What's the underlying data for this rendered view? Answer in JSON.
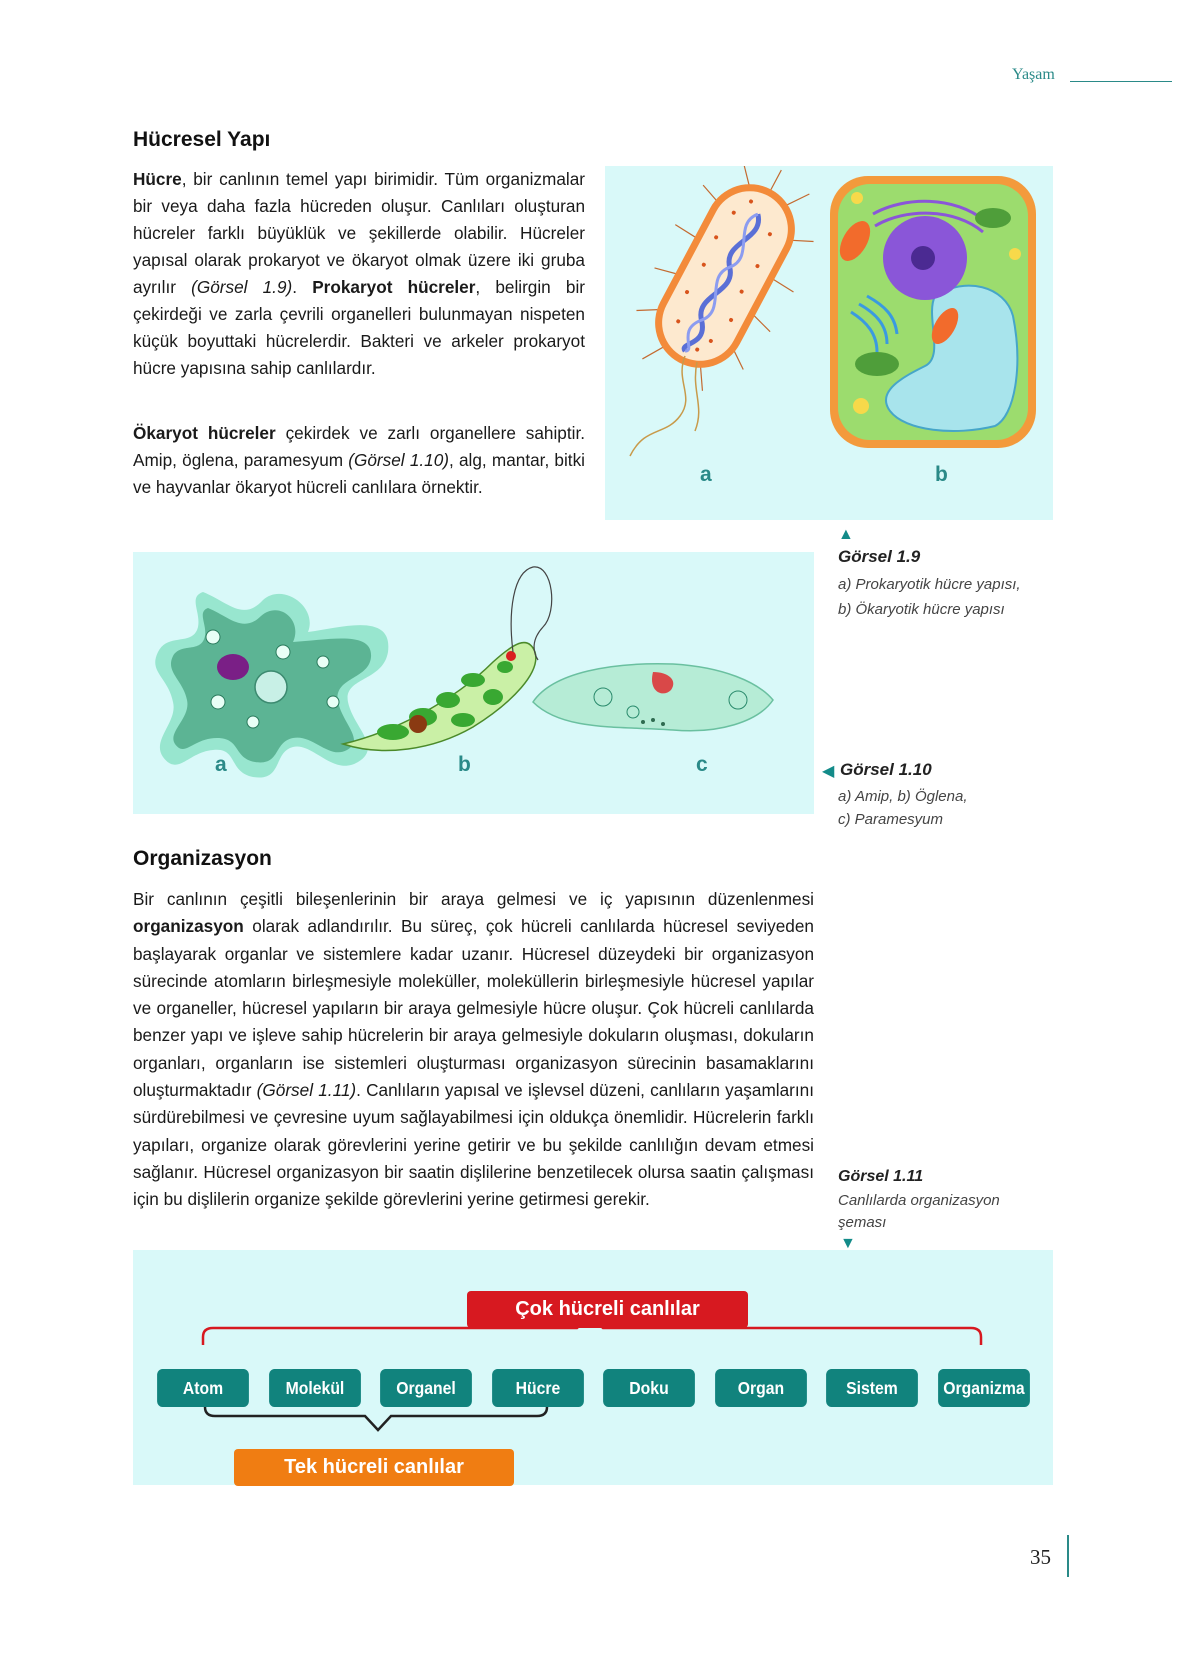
{
  "header": {
    "section": "Yaşam"
  },
  "section1": {
    "title": "Hücresel Yapı",
    "p1": [
      {
        "t": "Hücre",
        "b": true
      },
      {
        "t": ", bir canlının temel yapı birimidir. Tüm organizmalar bir veya daha fazla hücreden oluşur. Canlıları oluşturan hücreler farklı büyüklük ve şekillerde olabilir. Hücreler yapısal olarak prokaryot ve ökaryot olmak üzere iki gruba ayrılır "
      },
      {
        "t": "(Görsel 1.9)",
        "i": true
      },
      {
        "t": ". "
      },
      {
        "t": "Prokaryot hücreler",
        "b": true
      },
      {
        "t": ", belirgin bir çekirdeği ve zarla çevrili organelleri bulunmayan nispeten küçük boyuttaki hücrelerdir. Bakteri ve arkeler prokaryot hücre yapısına sahip canlılardır."
      }
    ],
    "p2": [
      {
        "t": "Ökaryot hücreler",
        "b": true
      },
      {
        "t": " çekirdek ve zarlı organellere sahiptir. Amip, öglena, paramesyum "
      },
      {
        "t": "(Görsel 1.10)",
        "i": true
      },
      {
        "t": ", alg, mantar, bitki ve hayvanlar ökaryot hücreli canlılara örnektir."
      }
    ]
  },
  "figure_1_9": {
    "labels": [
      "a",
      "b"
    ],
    "caption_title": "Görsel 1.9",
    "caption_lines": [
      "a) Prokaryotik hücre yapısı,",
      "b) Ökaryotik hücre yapısı"
    ]
  },
  "figure_1_10": {
    "labels": [
      "a",
      "b",
      "c"
    ],
    "caption_title": "Görsel 1.10",
    "caption_lines": [
      "a) Amip, b) Öglena,",
      "c) Paramesyum"
    ]
  },
  "section2": {
    "title": "Organizasyon",
    "p1": [
      {
        "t": "Bir canlının çeşitli bileşenlerinin bir araya gelmesi ve iç yapısının düzenlenmesi "
      },
      {
        "t": "organizasyon",
        "b": true
      },
      {
        "t": " olarak adlandırılır. Bu süreç, çok hücreli canlılarda hücresel seviyeden başlayarak organlar ve sistemlere kadar uzanır. Hücresel düzeydeki bir organizasyon sürecinde atomların birleşmesiyle moleküller, moleküllerin birleşmesiyle hücresel yapılar ve organeller, hücresel yapıların bir araya gelmesiyle hücre oluşur. Çok hücreli canlılarda benzer yapı ve işleve sahip hücrelerin bir araya gelmesiyle dokuların oluşması, dokuların organları, organların ise sistemleri oluşturması organizasyon sürecinin basamaklarını oluşturmaktadır "
      },
      {
        "t": "(Görsel 1.11)",
        "i": true
      },
      {
        "t": ". Canlıların yapısal ve işlevsel düzeni, canlıların yaşamlarını sürdürebilmesi ve çevresine uyum sağlayabilmesi için oldukça önemlidir. Hücrelerin farklı yapıları, organize olarak görevlerini yerine getirir ve bu şekilde canlılığın devam etmesi sağlanır. Hücresel organizasyon bir saatin dişlilerine benzetilecek olursa saatin çalışması için bu dişlilerin organize şekilde görevlerini yerine getirmesi gerekir."
      }
    ]
  },
  "figure_1_11": {
    "caption_title": "Görsel 1.11",
    "caption_lines": [
      "Canlılarda organizasyon",
      "şeması"
    ],
    "multi_label": "Çok hücreli canlılar",
    "single_label": "Tek hücreli canlılar",
    "nodes": [
      "Atom",
      "Molekül",
      "Organel",
      "Hücre",
      "Doku",
      "Organ",
      "Sistem",
      "Organizma"
    ]
  },
  "page_number": "35",
  "colors": {
    "accent": "#138b89",
    "panel": "#d9f9f9",
    "red": "#d71920",
    "orange": "#f07d12"
  }
}
